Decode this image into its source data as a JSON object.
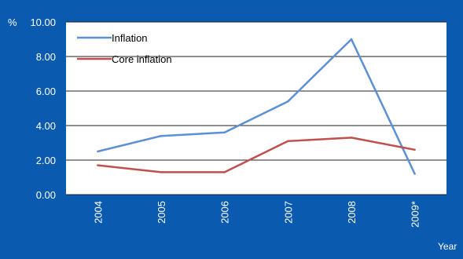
{
  "colors": {
    "background": "#0a5ab0",
    "plot_background": "#ffffff",
    "gridline": "#222222",
    "text": "#ffffff",
    "inflation": "#5b8fd6",
    "core_inflation": "#c0504d"
  },
  "chart_data": {
    "type": "line",
    "title": "",
    "ylabel": "%",
    "xlabel": "Year",
    "ylim": [
      0,
      10
    ],
    "yticks": [
      "0.00",
      "2.00",
      "4.00",
      "6.00",
      "8.00",
      "10.00"
    ],
    "categories": [
      "2004",
      "2005",
      "2006",
      "2007",
      "2008",
      "2009*"
    ],
    "grid": true,
    "legend_position": "top-left",
    "series": [
      {
        "name": "Inflation",
        "values": [
          2.5,
          3.4,
          3.6,
          5.4,
          9.0,
          1.2
        ]
      },
      {
        "name": "Core inflation",
        "values": [
          1.7,
          1.3,
          1.3,
          3.1,
          3.3,
          2.6
        ]
      }
    ]
  }
}
